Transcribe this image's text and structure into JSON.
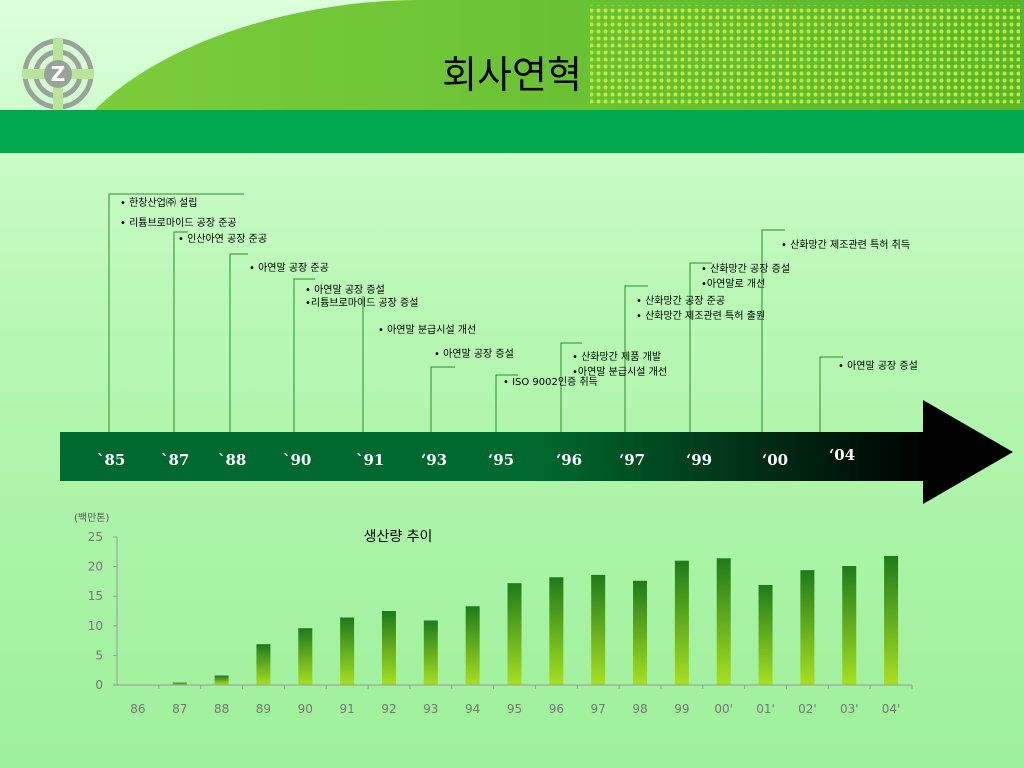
{
  "title": "회사연혁",
  "timeline": {
    "years": [
      "`85",
      "`87",
      "`88",
      "`90",
      "`91",
      "‘93",
      "‘95",
      "‘96",
      "‘97",
      "‘99",
      "‘00",
      "‘04"
    ],
    "events": [
      "• 한창산업㈜ 설립",
      "• 리튬브로마이드 공장 준공",
      "• 인산아연 공장 준공",
      "• 아연말 공장 준공",
      "• 아연말 공장 증설",
      "•리튬브로마이드 공장 증설",
      "• 아연말 분급시설 개선",
      "• 아연말 공장 증설",
      "• ISO 9002인증 취득",
      "• 산화망간 제품 개발",
      "•아연말 분급시설 개선",
      "• 산화망간 공장 준공",
      "• 산화망간 제조관련 특허 출원",
      "• 산화망간 공장 증설",
      "•아연말로 개선",
      "• 산화망간 제조관련 특허 취득",
      "• 아연말 공장 증설"
    ]
  },
  "chart_data": {
    "type": "bar",
    "title": "생산량 추이",
    "unit_label": "(백만톤)",
    "categories": [
      "86",
      "87",
      "88",
      "89",
      "90",
      "91",
      "92",
      "93",
      "94",
      "95",
      "96",
      "97",
      "98",
      "99",
      "00'",
      "01'",
      "02'",
      "03'",
      "04'"
    ],
    "values": [
      0,
      0.4,
      1.6,
      6.9,
      9.6,
      11.4,
      12.5,
      10.9,
      13.3,
      17.2,
      18.2,
      18.6,
      17.6,
      21.0,
      21.4,
      16.9,
      19.4,
      20.1,
      21.8
    ],
    "ylim": [
      0,
      25
    ],
    "yticks": [
      0,
      5,
      10,
      15,
      20,
      25
    ],
    "colors": {
      "bar_top": "#1f7a1a",
      "bar_bottom": "#a8e020"
    }
  }
}
